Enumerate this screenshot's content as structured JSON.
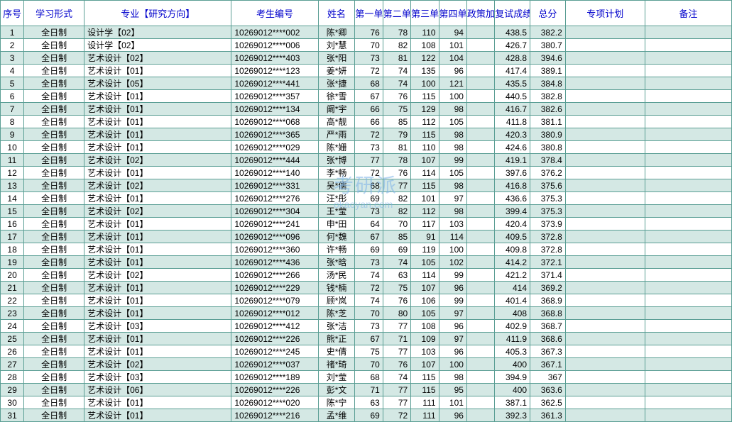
{
  "watermark": {
    "main": "考研派",
    "sub": "okaoyan.com"
  },
  "table": {
    "headers": [
      "序号",
      "学习形式",
      "专业【研究方向】",
      "考生编号",
      "姓名",
      "第一单元",
      "第二单元",
      "第三单元",
      "第四单元",
      "政策加分",
      "复试成绩",
      "总分",
      "专项计划",
      "备注"
    ],
    "header_color": "#0000cc",
    "border_color": "#5a9e94",
    "row_alt_bg": "#d4e8e4",
    "rows": [
      {
        "idx": 1,
        "form": "全日制",
        "major": "设计学【02】",
        "sid": "10269012****002",
        "name": "陈*卿",
        "u1": 76,
        "u2": 78,
        "u3": 110,
        "u4": 94,
        "pol": "",
        "fs": "438.5",
        "tot": "382.2",
        "plan": "",
        "note": ""
      },
      {
        "idx": 2,
        "form": "全日制",
        "major": "设计学【02】",
        "sid": "10269012****006",
        "name": "刘*慧",
        "u1": 70,
        "u2": 82,
        "u3": 108,
        "u4": 101,
        "pol": "",
        "fs": "426.7",
        "tot": "380.7",
        "plan": "",
        "note": ""
      },
      {
        "idx": 3,
        "form": "全日制",
        "major": "艺术设计【02】",
        "sid": "10269012****403",
        "name": "张*阳",
        "u1": 73,
        "u2": 81,
        "u3": 122,
        "u4": 104,
        "pol": "",
        "fs": "428.8",
        "tot": "394.6",
        "plan": "",
        "note": ""
      },
      {
        "idx": 4,
        "form": "全日制",
        "major": "艺术设计【01】",
        "sid": "10269012****123",
        "name": "姜*妍",
        "u1": 72,
        "u2": 74,
        "u3": 135,
        "u4": 96,
        "pol": "",
        "fs": "417.4",
        "tot": "389.1",
        "plan": "",
        "note": ""
      },
      {
        "idx": 5,
        "form": "全日制",
        "major": "艺术设计【05】",
        "sid": "10269012****441",
        "name": "张*捷",
        "u1": 68,
        "u2": 74,
        "u3": 100,
        "u4": 121,
        "pol": "",
        "fs": "435.5",
        "tot": "384.8",
        "plan": "",
        "note": ""
      },
      {
        "idx": 6,
        "form": "全日制",
        "major": "艺术设计【01】",
        "sid": "10269012****357",
        "name": "徐*雪",
        "u1": 67,
        "u2": 76,
        "u3": 115,
        "u4": 100,
        "pol": "",
        "fs": "440.5",
        "tot": "382.8",
        "plan": "",
        "note": ""
      },
      {
        "idx": 7,
        "form": "全日制",
        "major": "艺术设计【01】",
        "sid": "10269012****134",
        "name": "阚*宇",
        "u1": 66,
        "u2": 75,
        "u3": 129,
        "u4": 98,
        "pol": "",
        "fs": "416.7",
        "tot": "382.6",
        "plan": "",
        "note": ""
      },
      {
        "idx": 8,
        "form": "全日制",
        "major": "艺术设计【01】",
        "sid": "10269012****068",
        "name": "高*靓",
        "u1": 66,
        "u2": 85,
        "u3": 112,
        "u4": 105,
        "pol": "",
        "fs": "411.8",
        "tot": "381.1",
        "plan": "",
        "note": ""
      },
      {
        "idx": 9,
        "form": "全日制",
        "major": "艺术设计【01】",
        "sid": "10269012****365",
        "name": "严*雨",
        "u1": 72,
        "u2": 79,
        "u3": 115,
        "u4": 98,
        "pol": "",
        "fs": "420.3",
        "tot": "380.9",
        "plan": "",
        "note": ""
      },
      {
        "idx": 10,
        "form": "全日制",
        "major": "艺术设计【01】",
        "sid": "10269012****029",
        "name": "陈*姗",
        "u1": 73,
        "u2": 81,
        "u3": 110,
        "u4": 98,
        "pol": "",
        "fs": "424.6",
        "tot": "380.8",
        "plan": "",
        "note": ""
      },
      {
        "idx": 11,
        "form": "全日制",
        "major": "艺术设计【02】",
        "sid": "10269012****444",
        "name": "张*博",
        "u1": 77,
        "u2": 78,
        "u3": 107,
        "u4": 99,
        "pol": "",
        "fs": "419.1",
        "tot": "378.4",
        "plan": "",
        "note": ""
      },
      {
        "idx": 12,
        "form": "全日制",
        "major": "艺术设计【01】",
        "sid": "10269012****140",
        "name": "李*畅",
        "u1": 72,
        "u2": 76,
        "u3": 114,
        "u4": 105,
        "pol": "",
        "fs": "397.6",
        "tot": "376.2",
        "plan": "",
        "note": ""
      },
      {
        "idx": 13,
        "form": "全日制",
        "major": "艺术设计【02】",
        "sid": "10269012****331",
        "name": "吴*儒",
        "u1": 68,
        "u2": 77,
        "u3": 115,
        "u4": 98,
        "pol": "",
        "fs": "416.8",
        "tot": "375.6",
        "plan": "",
        "note": ""
      },
      {
        "idx": 14,
        "form": "全日制",
        "major": "艺术设计【01】",
        "sid": "10269012****276",
        "name": "汪*彤",
        "u1": 69,
        "u2": 82,
        "u3": 101,
        "u4": 97,
        "pol": "",
        "fs": "436.6",
        "tot": "375.3",
        "plan": "",
        "note": ""
      },
      {
        "idx": 15,
        "form": "全日制",
        "major": "艺术设计【02】",
        "sid": "10269012****304",
        "name": "王*莹",
        "u1": 73,
        "u2": 82,
        "u3": 112,
        "u4": 98,
        "pol": "",
        "fs": "399.4",
        "tot": "375.3",
        "plan": "",
        "note": ""
      },
      {
        "idx": 16,
        "form": "全日制",
        "major": "艺术设计【01】",
        "sid": "10269012****241",
        "name": "申*田",
        "u1": 64,
        "u2": 70,
        "u3": 117,
        "u4": 103,
        "pol": "",
        "fs": "420.4",
        "tot": "373.9",
        "plan": "",
        "note": ""
      },
      {
        "idx": 17,
        "form": "全日制",
        "major": "艺术设计【01】",
        "sid": "10269012****096",
        "name": "何*魏",
        "u1": 67,
        "u2": 85,
        "u3": 91,
        "u4": 114,
        "pol": "",
        "fs": "409.5",
        "tot": "372.8",
        "plan": "",
        "note": ""
      },
      {
        "idx": 18,
        "form": "全日制",
        "major": "艺术设计【01】",
        "sid": "10269012****360",
        "name": "许*畅",
        "u1": 69,
        "u2": 69,
        "u3": 119,
        "u4": 100,
        "pol": "",
        "fs": "409.8",
        "tot": "372.8",
        "plan": "",
        "note": ""
      },
      {
        "idx": 19,
        "form": "全日制",
        "major": "艺术设计【01】",
        "sid": "10269012****436",
        "name": "张*晗",
        "u1": 73,
        "u2": 74,
        "u3": 105,
        "u4": 102,
        "pol": "",
        "fs": "414.2",
        "tot": "372.1",
        "plan": "",
        "note": ""
      },
      {
        "idx": 20,
        "form": "全日制",
        "major": "艺术设计【02】",
        "sid": "10269012****266",
        "name": "汤*民",
        "u1": 74,
        "u2": 63,
        "u3": 114,
        "u4": 99,
        "pol": "",
        "fs": "421.2",
        "tot": "371.4",
        "plan": "",
        "note": ""
      },
      {
        "idx": 21,
        "form": "全日制",
        "major": "艺术设计【01】",
        "sid": "10269012****229",
        "name": "钱*楠",
        "u1": 72,
        "u2": 75,
        "u3": 107,
        "u4": 96,
        "pol": "",
        "fs": "414",
        "tot": "369.2",
        "plan": "",
        "note": ""
      },
      {
        "idx": 22,
        "form": "全日制",
        "major": "艺术设计【01】",
        "sid": "10269012****079",
        "name": "顾*岚",
        "u1": 74,
        "u2": 76,
        "u3": 106,
        "u4": 99,
        "pol": "",
        "fs": "401.4",
        "tot": "368.9",
        "plan": "",
        "note": ""
      },
      {
        "idx": 23,
        "form": "全日制",
        "major": "艺术设计【01】",
        "sid": "10269012****012",
        "name": "陈*芝",
        "u1": 70,
        "u2": 80,
        "u3": 105,
        "u4": 97,
        "pol": "",
        "fs": "408",
        "tot": "368.8",
        "plan": "",
        "note": ""
      },
      {
        "idx": 24,
        "form": "全日制",
        "major": "艺术设计【03】",
        "sid": "10269012****412",
        "name": "张*洁",
        "u1": 73,
        "u2": 77,
        "u3": 108,
        "u4": 96,
        "pol": "",
        "fs": "402.9",
        "tot": "368.7",
        "plan": "",
        "note": ""
      },
      {
        "idx": 25,
        "form": "全日制",
        "major": "艺术设计【01】",
        "sid": "10269012****226",
        "name": "熊*正",
        "u1": 67,
        "u2": 71,
        "u3": 109,
        "u4": 97,
        "pol": "",
        "fs": "411.9",
        "tot": "368.6",
        "plan": "",
        "note": ""
      },
      {
        "idx": 26,
        "form": "全日制",
        "major": "艺术设计【01】",
        "sid": "10269012****245",
        "name": "史*倩",
        "u1": 75,
        "u2": 77,
        "u3": 103,
        "u4": 96,
        "pol": "",
        "fs": "405.3",
        "tot": "367.3",
        "plan": "",
        "note": ""
      },
      {
        "idx": 27,
        "form": "全日制",
        "major": "艺术设计【02】",
        "sid": "10269012****037",
        "name": "禇*琦",
        "u1": 70,
        "u2": 76,
        "u3": 107,
        "u4": 100,
        "pol": "",
        "fs": "400",
        "tot": "367.1",
        "plan": "",
        "note": ""
      },
      {
        "idx": 28,
        "form": "全日制",
        "major": "艺术设计【03】",
        "sid": "10269012****189",
        "name": "刘*莹",
        "u1": 68,
        "u2": 74,
        "u3": 115,
        "u4": 98,
        "pol": "",
        "fs": "394.9",
        "tot": "367",
        "plan": "",
        "note": ""
      },
      {
        "idx": 29,
        "form": "全日制",
        "major": "艺术设计【06】",
        "sid": "10269012****226",
        "name": "彭*文",
        "u1": 71,
        "u2": 77,
        "u3": 115,
        "u4": 95,
        "pol": "",
        "fs": "400",
        "tot": "363.6",
        "plan": "",
        "note": ""
      },
      {
        "idx": 30,
        "form": "全日制",
        "major": "艺术设计【01】",
        "sid": "10269012****020",
        "name": "陈*宁",
        "u1": 63,
        "u2": 77,
        "u3": 111,
        "u4": 101,
        "pol": "",
        "fs": "387.1",
        "tot": "362.5",
        "plan": "",
        "note": ""
      },
      {
        "idx": 31,
        "form": "全日制",
        "major": "艺术设计【01】",
        "sid": "10269012****216",
        "name": "孟*维",
        "u1": 69,
        "u2": 72,
        "u3": 111,
        "u4": 96,
        "pol": "",
        "fs": "392.3",
        "tot": "361.3",
        "plan": "",
        "note": ""
      }
    ]
  }
}
